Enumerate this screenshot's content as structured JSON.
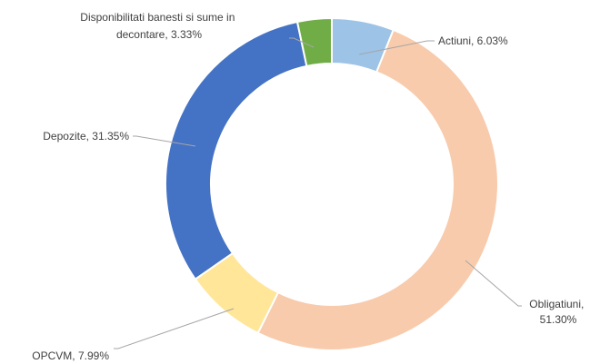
{
  "chart_data": {
    "type": "pie",
    "variant": "doughnut",
    "start_angle_deg": 0,
    "direction": "clockwise",
    "categories": [
      "Actiuni",
      "Obligatiuni",
      "OPCVM",
      "Depozite",
      "Disponibilitati banesti si sume in decontare"
    ],
    "values": [
      6.03,
      51.3,
      7.99,
      31.35,
      3.33
    ],
    "colors": [
      "#9dc3e6",
      "#f8cbad",
      "#ffe699",
      "#4472c4",
      "#70ad47"
    ],
    "labels": {
      "actiuni": [
        "Actiuni, 6.03%"
      ],
      "obligatiuni": [
        "Obligatiuni,",
        "51.30%"
      ],
      "opcvm": [
        "OPCVM, 7.99%"
      ],
      "depozite": [
        "Depozite, 31.35%"
      ],
      "disponibilitati": [
        "Disponibilitati banesti si sume in",
        "decontare, 3.33%"
      ]
    },
    "legend": "none",
    "title": ""
  }
}
